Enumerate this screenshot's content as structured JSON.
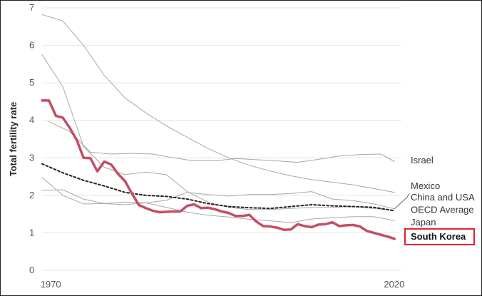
{
  "chart_data": {
    "type": "line",
    "title": "",
    "xlabel": "",
    "ylabel": "Total fertility rate",
    "xlim": [
      1969,
      2021
    ],
    "ylim": [
      0,
      7
    ],
    "xticks": [
      1970,
      2020
    ],
    "yticks": [
      0,
      1,
      2,
      3,
      4,
      5,
      6,
      7
    ],
    "grid": "horizontal",
    "legend": "direct-labels-right",
    "highlight_series": "South Korea",
    "colors": {
      "highlight": "#c44e66",
      "other": "#a8a8a8",
      "average": "#222222",
      "label_box": "#e0202a",
      "grid": "#e4e4e4"
    },
    "series": [
      {
        "name": "Israel",
        "x": [
          1970,
          1973,
          1976,
          1979,
          1982,
          1985,
          1988,
          1991,
          1994,
          1997,
          2000,
          2003,
          2006,
          2009,
          2012,
          2015,
          2018,
          2020
        ],
        "values": [
          3.97,
          3.7,
          3.15,
          3.1,
          3.12,
          3.1,
          3.0,
          2.92,
          2.92,
          2.98,
          2.95,
          2.92,
          2.88,
          2.96,
          3.05,
          3.09,
          3.1,
          2.9
        ]
      },
      {
        "name": "Mexico",
        "x": [
          1969,
          1972,
          1975,
          1978,
          1981,
          1984,
          1987,
          1990,
          1993,
          1996,
          1999,
          2002,
          2005,
          2008,
          2011,
          2014,
          2017,
          2020
        ],
        "values": [
          6.82,
          6.65,
          6.0,
          5.2,
          4.6,
          4.2,
          3.85,
          3.55,
          3.25,
          3.0,
          2.8,
          2.65,
          2.52,
          2.42,
          2.35,
          2.28,
          2.18,
          2.08
        ]
      },
      {
        "name": "China",
        "x": [
          1969,
          1972,
          1975,
          1978,
          1981,
          1984,
          1987,
          1990,
          1993,
          1996,
          1999,
          2002,
          2005,
          2008,
          2011,
          2014,
          2017,
          2020
        ],
        "values": [
          5.75,
          4.9,
          3.3,
          2.75,
          2.55,
          2.62,
          2.55,
          2.1,
          1.82,
          1.68,
          1.62,
          1.62,
          1.65,
          1.68,
          1.68,
          1.7,
          1.65,
          1.6
        ]
      },
      {
        "name": "USA",
        "x": [
          1969,
          1972,
          1975,
          1978,
          1981,
          1984,
          1987,
          1990,
          1993,
          1996,
          1999,
          2002,
          2005,
          2008,
          2011,
          2014,
          2017,
          2020
        ],
        "values": [
          2.48,
          2.0,
          1.77,
          1.78,
          1.82,
          1.8,
          1.87,
          2.08,
          2.02,
          1.98,
          2.02,
          2.02,
          2.05,
          2.1,
          1.9,
          1.86,
          1.77,
          1.64
        ]
      },
      {
        "name": "Japan",
        "x": [
          1969,
          1972,
          1975,
          1978,
          1981,
          1984,
          1987,
          1990,
          1993,
          1996,
          1999,
          2002,
          2005,
          2008,
          2011,
          2014,
          2017,
          2020
        ],
        "values": [
          2.13,
          2.15,
          1.9,
          1.78,
          1.75,
          1.8,
          1.68,
          1.55,
          1.47,
          1.42,
          1.36,
          1.32,
          1.27,
          1.37,
          1.4,
          1.43,
          1.43,
          1.33
        ]
      },
      {
        "name": "OECD Average",
        "x": [
          1969,
          1972,
          1975,
          1978,
          1981,
          1984,
          1987,
          1990,
          1993,
          1996,
          1999,
          2002,
          2005,
          2008,
          2011,
          2014,
          2017,
          2020
        ],
        "values": [
          2.84,
          2.6,
          2.4,
          2.25,
          2.08,
          2.0,
          1.97,
          1.9,
          1.78,
          1.7,
          1.67,
          1.65,
          1.7,
          1.75,
          1.72,
          1.7,
          1.68,
          1.59
        ]
      },
      {
        "name": "South Korea",
        "x": [
          1969,
          1970,
          1971,
          1972,
          1973,
          1974,
          1975,
          1976,
          1977,
          1978,
          1979,
          1980,
          1981,
          1982,
          1983,
          1984,
          1985,
          1986,
          1987,
          1988,
          1989,
          1990,
          1991,
          1992,
          1993,
          1994,
          1995,
          1996,
          1997,
          1998,
          1999,
          2000,
          2001,
          2002,
          2003,
          2004,
          2005,
          2006,
          2007,
          2008,
          2009,
          2010,
          2011,
          2012,
          2013,
          2014,
          2015,
          2016,
          2017,
          2018,
          2019,
          2020
        ],
        "values": [
          4.53,
          4.53,
          4.12,
          4.07,
          3.8,
          3.48,
          3.0,
          2.99,
          2.64,
          2.9,
          2.82,
          2.57,
          2.38,
          2.05,
          1.74,
          1.66,
          1.59,
          1.55,
          1.56,
          1.57,
          1.57,
          1.72,
          1.76,
          1.66,
          1.67,
          1.63,
          1.57,
          1.53,
          1.45,
          1.45,
          1.48,
          1.3,
          1.18,
          1.17,
          1.14,
          1.08,
          1.09,
          1.23,
          1.18,
          1.15,
          1.22,
          1.23,
          1.28,
          1.18,
          1.2,
          1.21,
          1.17,
          1.05,
          1.0,
          0.95,
          0.9,
          0.84
        ]
      }
    ],
    "labels": [
      {
        "text": "Israel",
        "y": 2.85
      },
      {
        "text": "Mexico",
        "y": 2.17
      },
      {
        "text": "China and USA",
        "y": 1.86
      },
      {
        "text": "OECD Average",
        "y": 1.53
      },
      {
        "text": "Japan",
        "y": 1.2
      },
      {
        "text": "South Korea",
        "y": 0.82
      }
    ]
  }
}
